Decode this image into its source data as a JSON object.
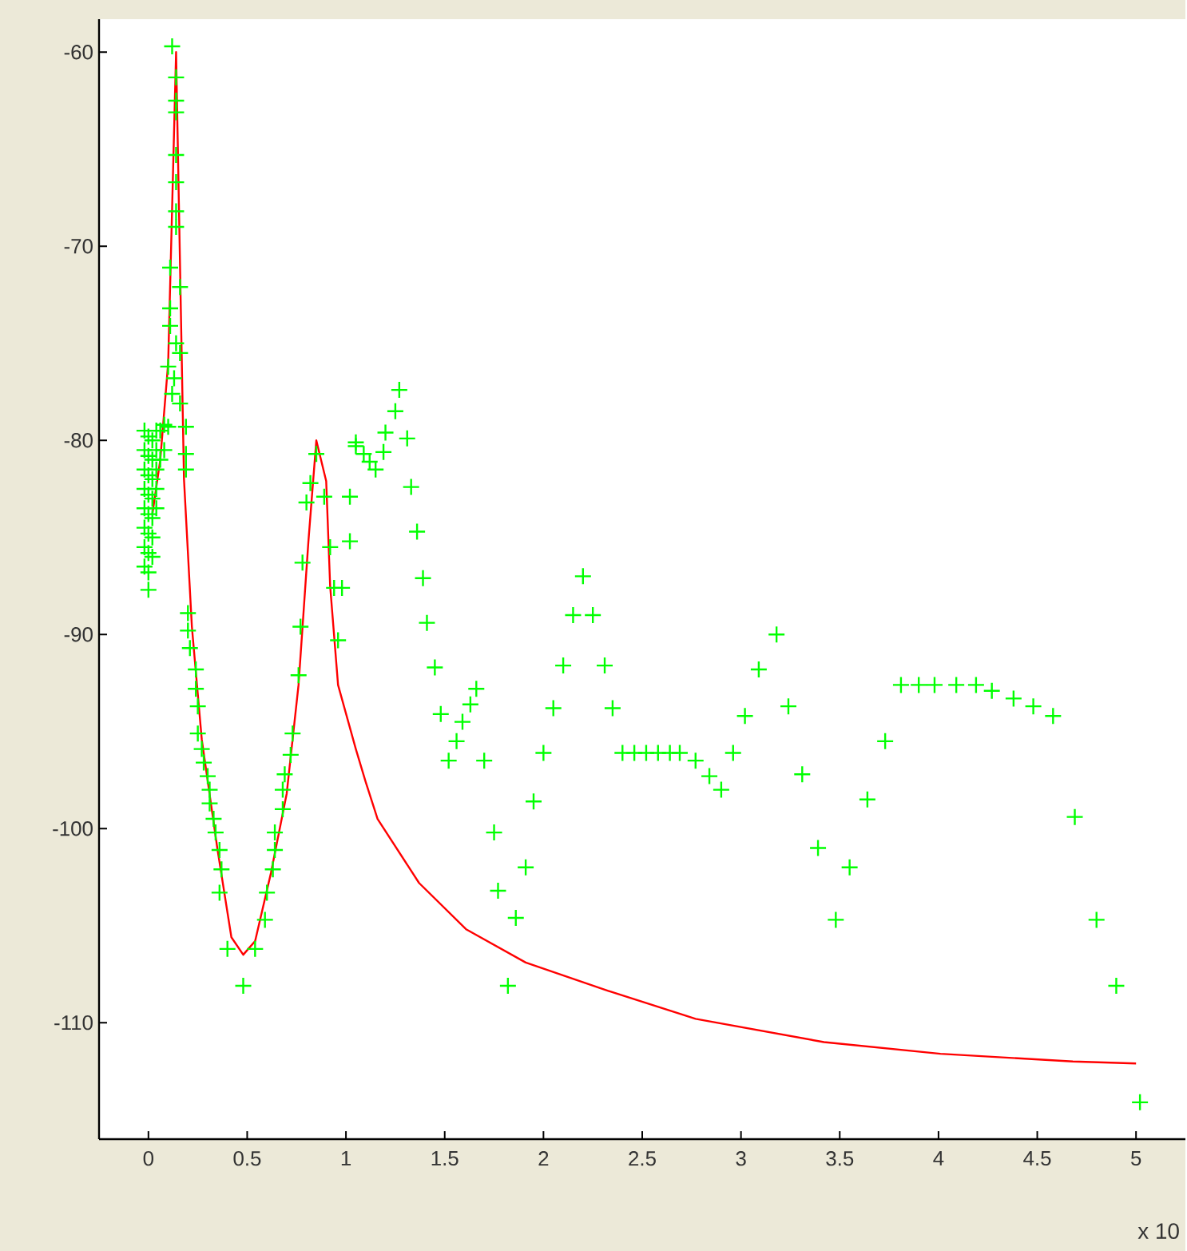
{
  "chart_data": {
    "type": "scatter",
    "xlim": [
      -0.25,
      5.25
    ],
    "ylim": [
      -116,
      -58.3
    ],
    "xticks": [
      0,
      0.5,
      1,
      1.5,
      2,
      2.5,
      3,
      3.5,
      4,
      4.5,
      5
    ],
    "yticks": [
      -110,
      -100,
      -90,
      -80,
      -70,
      -60
    ],
    "annotations": [
      "x 10"
    ],
    "series": [
      {
        "color": "#00ff00",
        "marker": "cross",
        "x": [
          -0.02,
          -0.02,
          -0.02,
          -0.02,
          -0.02,
          -0.02,
          -0.02,
          -0.02,
          0.0,
          0.0,
          0.0,
          0.0,
          0.0,
          0.0,
          0.0,
          0.0,
          0.0,
          0.02,
          0.02,
          0.02,
          0.02,
          0.02,
          0.02,
          0.02,
          0.04,
          0.04,
          0.04,
          0.04,
          0.04,
          0.06,
          0.06,
          0.08,
          0.08,
          0.1,
          0.12,
          0.14,
          0.14,
          0.14,
          0.14,
          0.14,
          0.14,
          0.14,
          0.11,
          0.16,
          0.11,
          0.11,
          0.14,
          0.16,
          0.1,
          0.13,
          0.12,
          0.16,
          0.19,
          0.19,
          0.19,
          0.2,
          0.2,
          0.21,
          0.24,
          0.24,
          0.25,
          0.25,
          0.27,
          0.28,
          0.3,
          0.31,
          0.31,
          0.33,
          0.34,
          0.36,
          0.37,
          0.36,
          0.4,
          0.48,
          0.54,
          0.59,
          0.6,
          0.63,
          0.64,
          0.64,
          0.68,
          0.68,
          0.69,
          0.72,
          0.73,
          0.76,
          0.77,
          0.78,
          0.8,
          0.82,
          0.85,
          0.89,
          1.02,
          0.92,
          1.02,
          0.94,
          0.98,
          1.05,
          0.96,
          1.27,
          1.25,
          1.2,
          1.31,
          1.05,
          1.09,
          1.12,
          1.15,
          1.19,
          1.33,
          1.36,
          1.39,
          1.41,
          1.45,
          1.48,
          1.52,
          1.56,
          1.59,
          1.63,
          1.66,
          1.7,
          1.75,
          1.77,
          1.82,
          1.86,
          1.91,
          1.95,
          2.0,
          2.05,
          2.1,
          2.15,
          2.2,
          2.25,
          2.31,
          2.35,
          2.4,
          2.46,
          2.52,
          2.58,
          2.64,
          2.69,
          2.77,
          2.84,
          2.9,
          2.96,
          3.02,
          3.09,
          3.18,
          3.24,
          3.31,
          3.39,
          3.48,
          3.55,
          3.64,
          3.73,
          3.81,
          3.9,
          3.98,
          4.09,
          4.19,
          4.27,
          4.38,
          4.48,
          4.58,
          4.69,
          4.8,
          4.9,
          5.02
        ],
        "values": [
          -79.5,
          -80.5,
          -81.5,
          -82.5,
          -83.5,
          -84.5,
          -85.5,
          -86.5,
          -79.8,
          -80.8,
          -81.8,
          -82.8,
          -83.8,
          -84.8,
          -85.8,
          -86.8,
          -87.7,
          -80,
          -81,
          -82,
          -83,
          -84,
          -85,
          -86,
          -79.5,
          -80.5,
          -81.5,
          -82.5,
          -83.5,
          -79.5,
          -81,
          -79.2,
          -80.5,
          -79.3,
          -59.7,
          -61.3,
          -62.5,
          -63.1,
          -65.3,
          -66.7,
          -68.2,
          -69,
          -71.1,
          -72.1,
          -73.2,
          -74.1,
          -75,
          -75.5,
          -76.2,
          -76.8,
          -77.6,
          -78.1,
          -79.3,
          -80.7,
          -81.5,
          -88.9,
          -89.8,
          -90.7,
          -91.8,
          -92.8,
          -93.7,
          -95.1,
          -95.9,
          -96.6,
          -97.3,
          -98,
          -98.7,
          -99.5,
          -100.2,
          -101.1,
          -102.1,
          -103.3,
          -106.2,
          -108.1,
          -106.2,
          -104.7,
          -103.3,
          -102.1,
          -101.1,
          -100.2,
          -99,
          -98,
          -97.2,
          -96.2,
          -95.1,
          -92.1,
          -89.6,
          -86.3,
          -83.2,
          -82.2,
          -80.7,
          -82.9,
          -82.9,
          -85.5,
          -85.2,
          -87.6,
          -87.6,
          -80.1,
          -90.3,
          -77.4,
          -78.5,
          -79.6,
          -79.9,
          -80.3,
          -80.7,
          -81.1,
          -81.5,
          -80.6,
          -82.4,
          -84.7,
          -87.1,
          -89.4,
          -91.7,
          -94.1,
          -96.5,
          -95.5,
          -94.5,
          -93.6,
          -92.8,
          -96.5,
          -100.2,
          -103.2,
          -108.1,
          -104.6,
          -102,
          -98.6,
          -96.1,
          -93.8,
          -91.6,
          -89,
          -87,
          -89,
          -91.6,
          -93.8,
          -96.1,
          -96.1,
          -96.1,
          -96.1,
          -96.1,
          -96.1,
          -96.5,
          -97.3,
          -98,
          -96.1,
          -94.2,
          -91.8,
          -90,
          -93.7,
          -97.2,
          -101,
          -104.7,
          -102,
          -98.5,
          -95.5,
          -92.6,
          -92.6,
          -92.6,
          -92.6,
          -92.6,
          -92.9,
          -93.3,
          -93.7,
          -94.2,
          -99.4,
          -104.7,
          -108.1,
          -114.1
        ]
      },
      {
        "type": "line",
        "color": "#ff0000",
        "marker": "none",
        "line_style": "solid",
        "x": [
          0.02,
          0.06,
          0.1,
          0.12,
          0.14,
          0.16,
          0.18,
          0.22,
          0.27,
          0.35,
          0.42,
          0.48,
          0.54,
          0.62,
          0.7,
          0.76,
          0.81,
          0.85,
          0.9,
          0.92,
          0.96,
          1.05,
          1.1,
          1.16,
          1.37,
          1.61,
          1.91,
          2.31,
          2.77,
          3.42,
          4.01,
          4.68,
          5.0
        ],
        "values": [
          -83.8,
          -81,
          -76,
          -68,
          -60,
          -71,
          -82,
          -89.6,
          -95.4,
          -101.1,
          -105.6,
          -106.5,
          -105.8,
          -102.3,
          -98.2,
          -92.6,
          -85.2,
          -80,
          -82.1,
          -87.5,
          -92.6,
          -95.9,
          -97.6,
          -99.5,
          -102.8,
          -105.2,
          -106.9,
          -108.3,
          -109.8,
          -111,
          -111.6,
          -112,
          -112.1
        ]
      }
    ]
  }
}
